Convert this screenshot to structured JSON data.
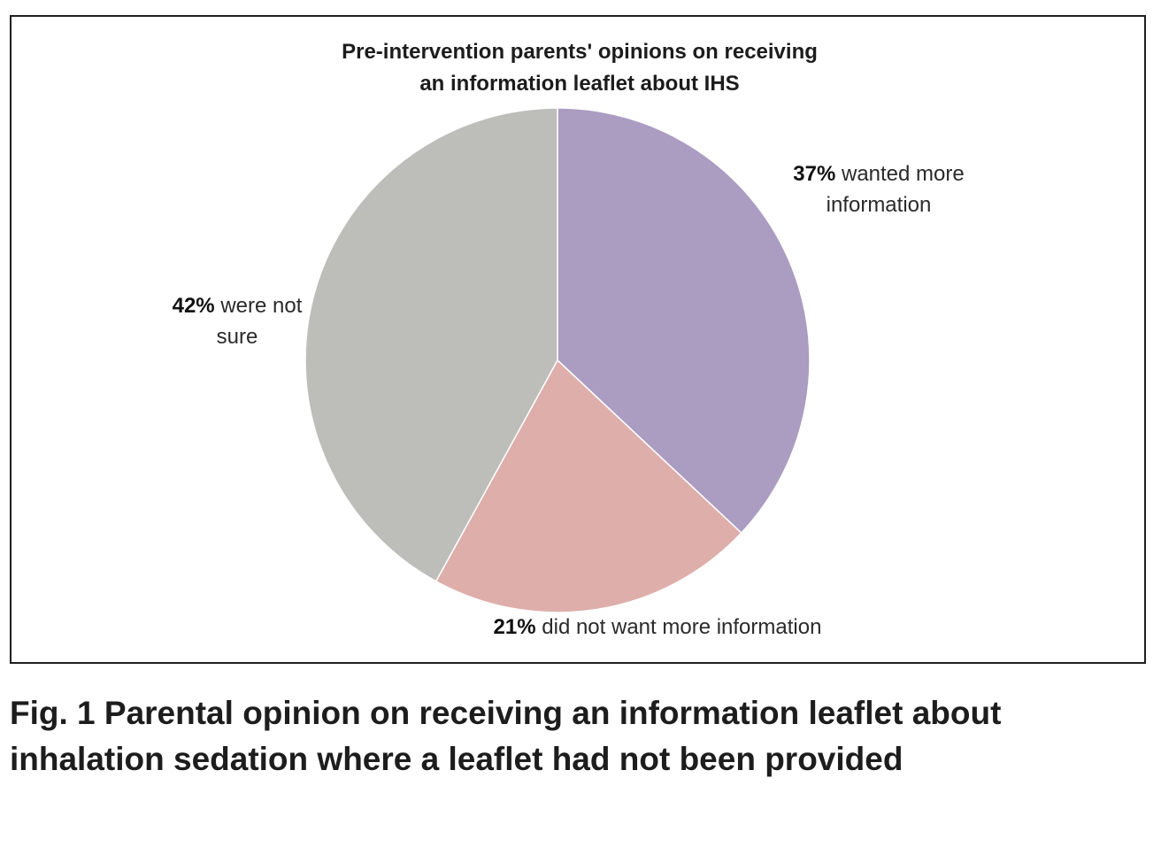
{
  "chart_data": {
    "type": "pie",
    "title": "Pre-intervention parents' opinions on receiving an information leaflet about IHS",
    "title_lines": [
      "Pre-intervention parents' opinions on receiving",
      "an information leaflet about IHS"
    ],
    "slices": [
      {
        "value": 37,
        "percent_label": "37%",
        "label": "wanted more information",
        "label_lines": [
          "wanted more",
          "information"
        ],
        "color": "#ab9cc1"
      },
      {
        "value": 21,
        "percent_label": "21%",
        "label": "did not want more information",
        "label_lines": [
          "did not want more information"
        ],
        "color": "#deaeab"
      },
      {
        "value": 42,
        "percent_label": "42%",
        "label": "were not sure",
        "label_lines": [
          "were not",
          "sure"
        ],
        "color": "#bdbdb9"
      }
    ],
    "start_angle_deg": 0,
    "direction": "clockwise",
    "legend": "none"
  },
  "caption": {
    "text": "Fig. 1  Parental opinion on receiving an information leaflet about inhalation sedation where a leaflet had not been provided"
  }
}
